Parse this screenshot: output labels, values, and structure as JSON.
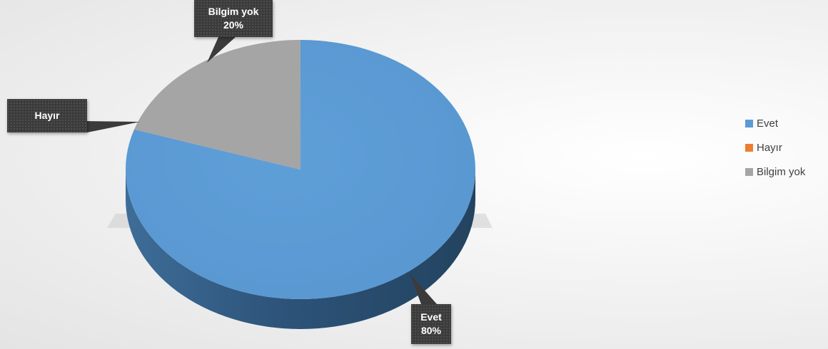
{
  "chart_data": {
    "type": "pie",
    "categories": [
      "Evet",
      "Hayır",
      "Bilgim yok"
    ],
    "values": [
      80,
      0,
      20
    ],
    "colors": [
      "#5b9bd5",
      "#ed7d31",
      "#a5a5a5"
    ],
    "data_labels": [
      {
        "category": "Evet",
        "percent": "80%"
      },
      {
        "category": "Hayır",
        "percent": ""
      },
      {
        "category": "Bilgim yok",
        "percent": "20%"
      }
    ],
    "title": "",
    "legend_position": "right",
    "style": "3d"
  },
  "legend": {
    "items": [
      {
        "label": "Evet",
        "color": "#5b9bd5"
      },
      {
        "label": "Hayır",
        "color": "#ed7d31"
      },
      {
        "label": "Bilgim yok",
        "color": "#a5a5a5"
      }
    ]
  }
}
